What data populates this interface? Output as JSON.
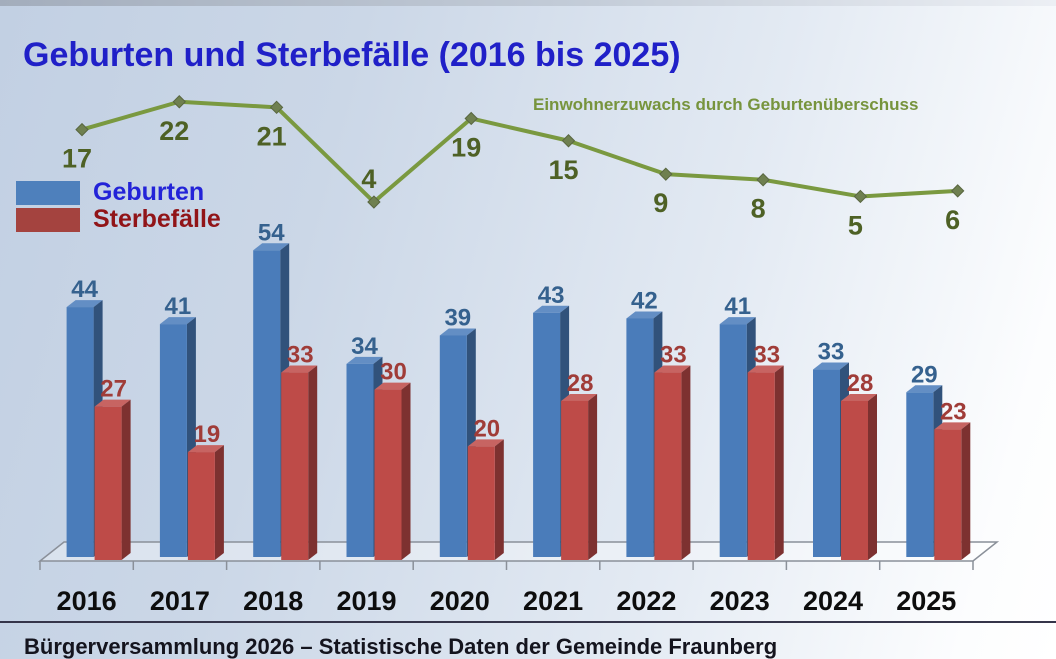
{
  "title": "Geburten und Sterbefälle (2016 bis 2025)",
  "footer": "Bürgerversammlung 2026 – Statistische Daten der Gemeinde Fraunberg",
  "legend": [
    {
      "label": "Geburten",
      "color": "#4e80bc",
      "text_color": "#2323d8"
    },
    {
      "label": "Sterbefälle",
      "color": "#a4433f",
      "text_color": "#911418"
    }
  ],
  "annotation": {
    "text": "Einwohnerzuwachs durch Geburtenüberschuss",
    "color": "#77943d"
  },
  "chart_data": {
    "type": "bar",
    "subtype": "3d-clustered-bars-with-line-overlay",
    "title": "Geburten und Sterbefälle (2016 bis 2025)",
    "categories": [
      "2016",
      "2017",
      "2018",
      "2019",
      "2020",
      "2021",
      "2022",
      "2023",
      "2024",
      "2025"
    ],
    "series": [
      {
        "name": "Geburten",
        "type": "bar",
        "color": "#4a7cba",
        "label_color": "#35618e",
        "values": [
          44,
          41,
          54,
          34,
          39,
          43,
          42,
          41,
          33,
          29
        ]
      },
      {
        "name": "Sterbefälle",
        "type": "bar",
        "color": "#be4b48",
        "label_color": "#a03c38",
        "values": [
          27,
          19,
          33,
          30,
          20,
          28,
          33,
          33,
          28,
          23
        ]
      },
      {
        "name": "Einwohnerzuwachs durch Geburtenüberschuss",
        "type": "line",
        "color": "#7a9940",
        "marker": "diamond",
        "marker_color": "#6f8050",
        "label_color": "#4e6125",
        "values": [
          17,
          22,
          21,
          4,
          19,
          15,
          9,
          8,
          5,
          6
        ]
      }
    ],
    "value_labels": true,
    "grid": false,
    "legend_position": "upper-left",
    "xlabel": "",
    "ylabel": "",
    "axis_tick_color": "#8a9099",
    "category_label_color": "#0d0d0d",
    "ylim": [
      0,
      60
    ]
  }
}
